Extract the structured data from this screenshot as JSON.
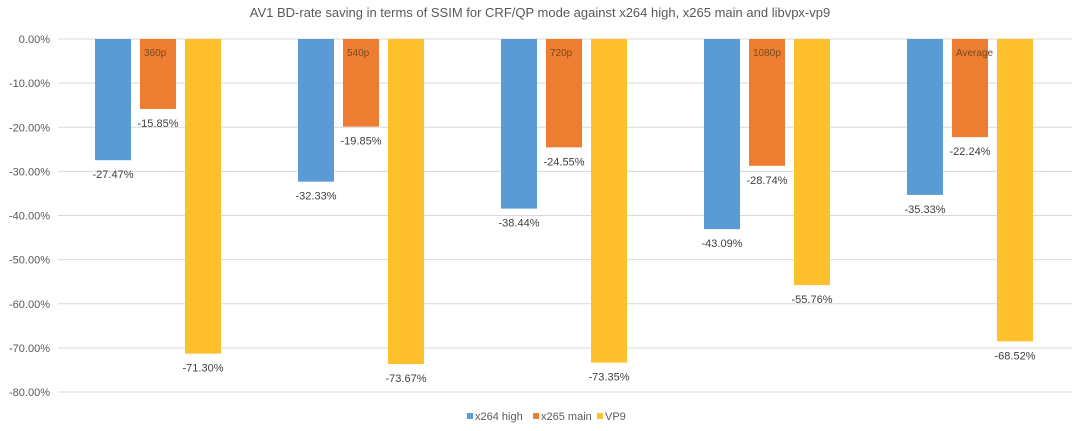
{
  "chart_data": {
    "type": "bar",
    "title": "AV1 BD-rate saving in terms of SSIM for CRF/QP mode against x264 high, x265 main and libvpx-vp9",
    "categories": [
      "360p",
      "540p",
      "720p",
      "1080p",
      "Average"
    ],
    "series": [
      {
        "name": "x264 high",
        "color": "#5B9BD5",
        "values": [
          -27.47,
          -32.33,
          -38.44,
          -43.09,
          -35.33
        ]
      },
      {
        "name": "x265 main",
        "color": "#ED7D31",
        "values": [
          -15.85,
          -19.85,
          -24.55,
          -28.74,
          -22.24
        ]
      },
      {
        "name": "VP9",
        "color": "#FFC02E",
        "values": [
          -71.3,
          -73.67,
          -73.35,
          -55.76,
          -68.52
        ]
      }
    ],
    "ylim": [
      -80,
      0
    ],
    "yticks": [
      0,
      -10,
      -20,
      -30,
      -40,
      -50,
      -60,
      -70,
      -80
    ],
    "value_format": "percent_2dp",
    "grid": true,
    "legend_position": "bottom"
  }
}
